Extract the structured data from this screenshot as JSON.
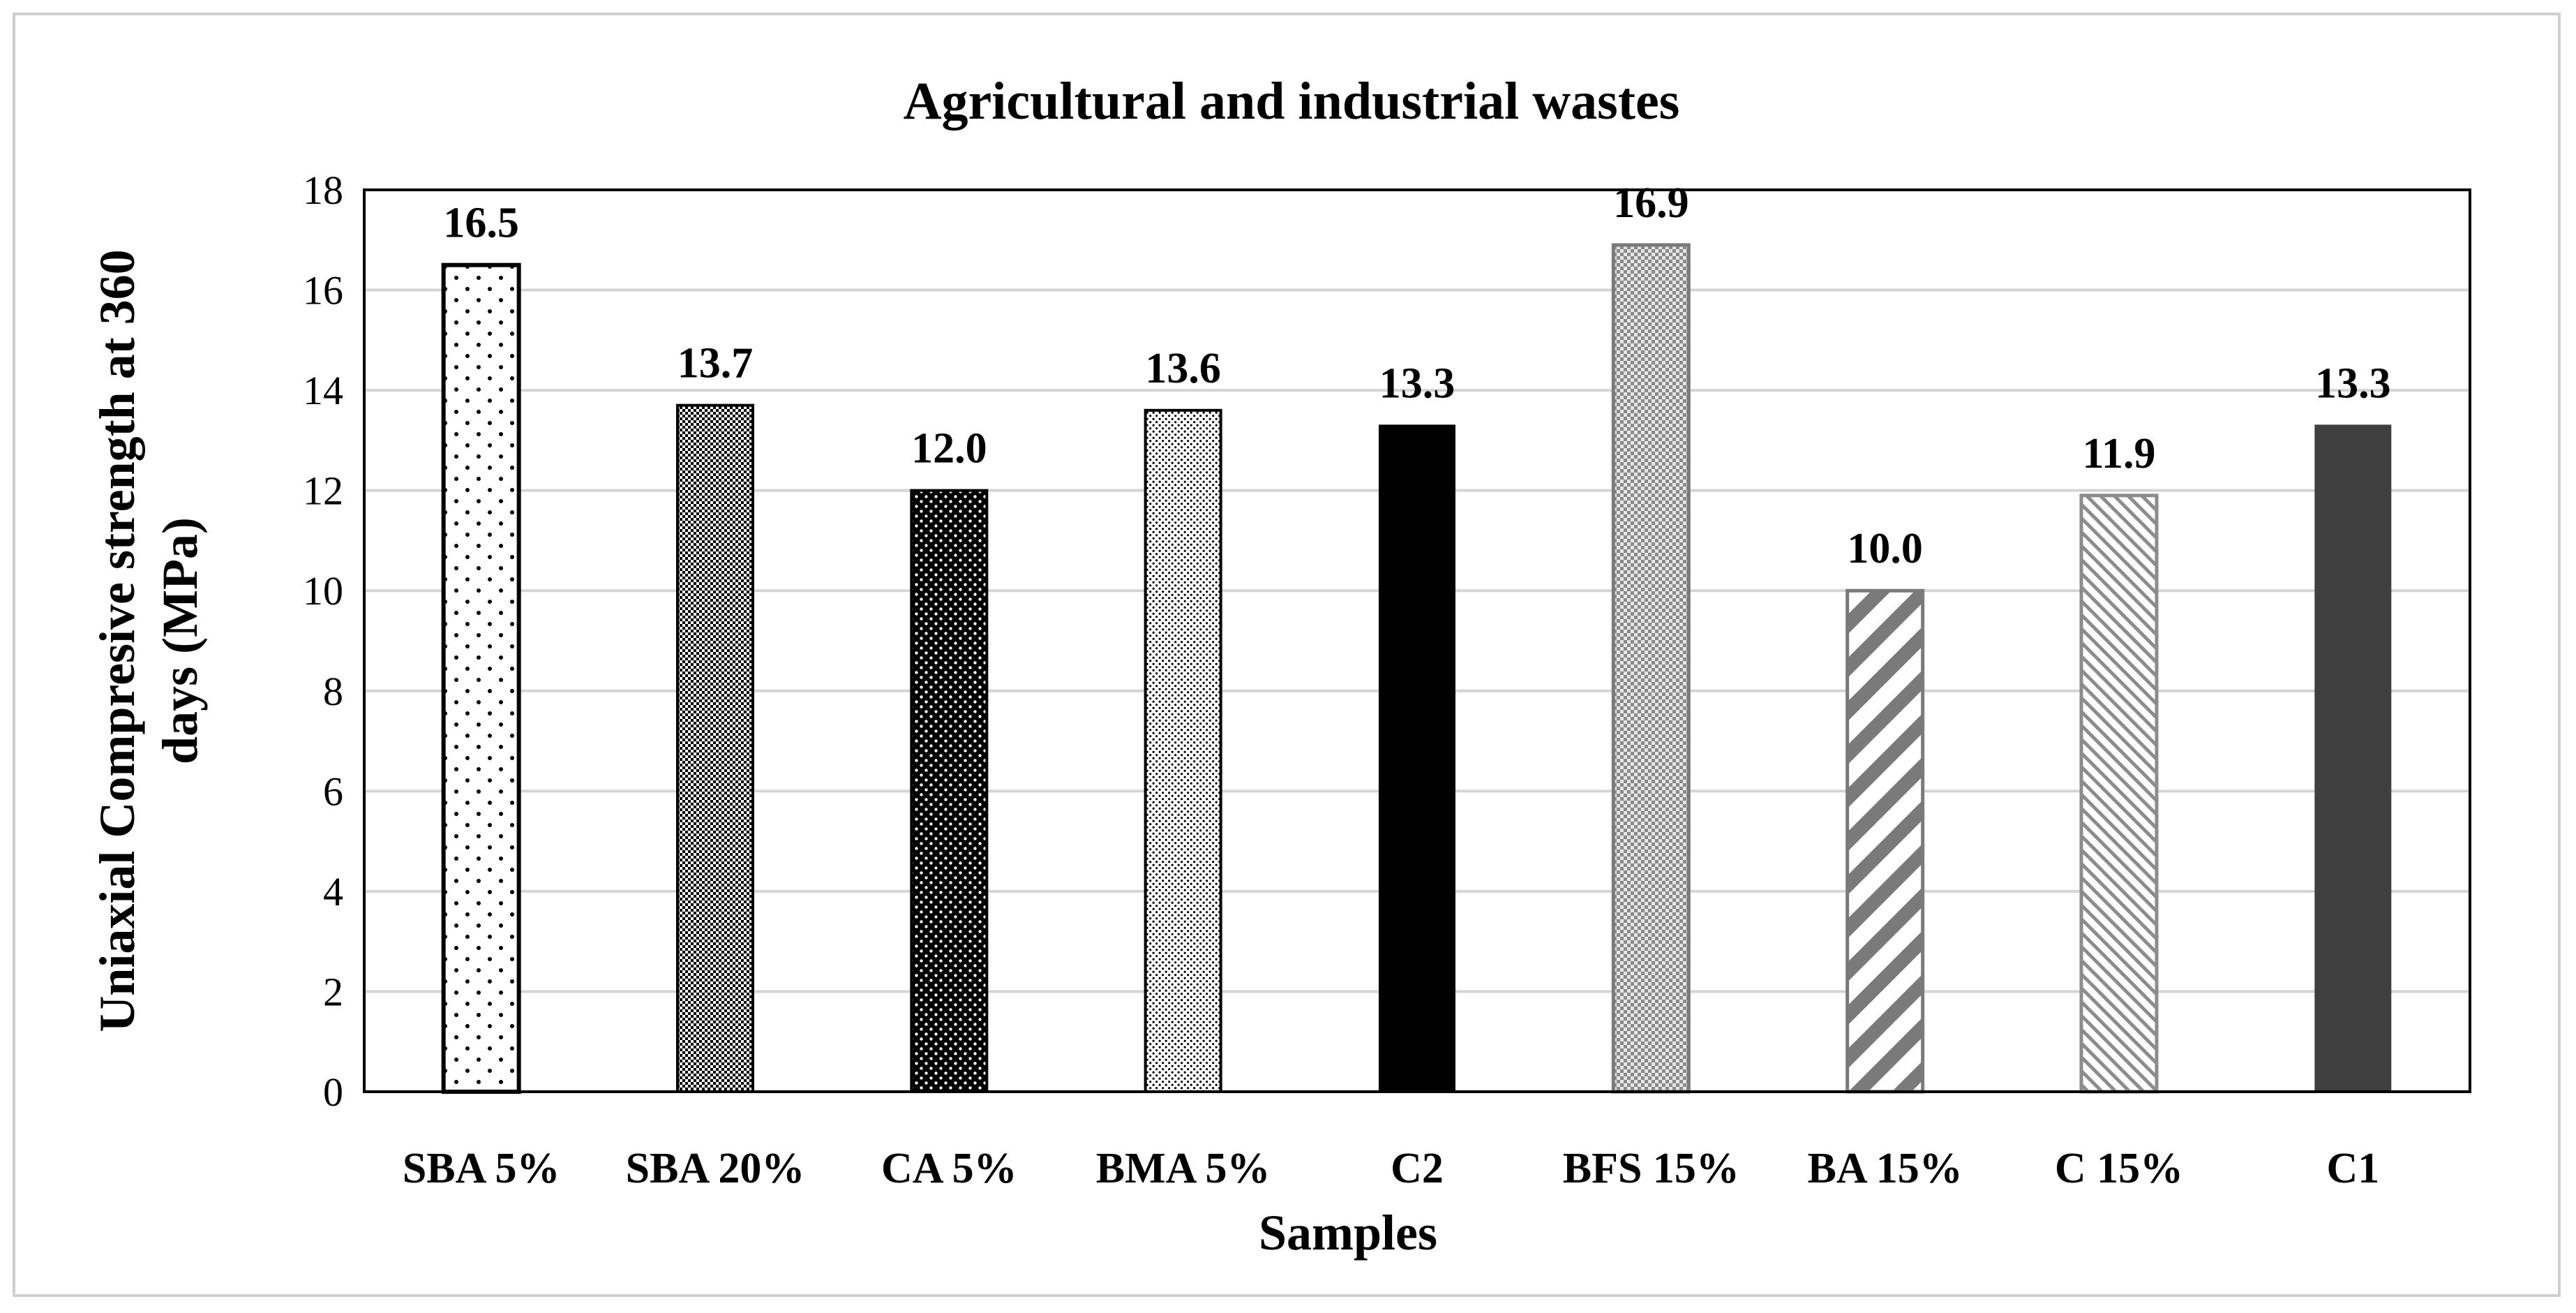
{
  "chart_data": {
    "type": "bar",
    "title": "Agricultural and industrial wastes",
    "xlabel": "Samples",
    "ylabel_lines": [
      "Uniaxial Compresive strength at 360",
      "days (MPa)"
    ],
    "ylim": [
      0,
      18
    ],
    "yticks": [
      0,
      2,
      4,
      6,
      8,
      10,
      12,
      14,
      16,
      18
    ],
    "grid": true,
    "categories": [
      "SBA 5%",
      "SBA 20%",
      "CA 5%",
      "BMA 5%",
      "C2",
      "BFS 15%",
      "BA 15%",
      "C 15%",
      "C1"
    ],
    "values": [
      16.5,
      13.7,
      12.0,
      13.6,
      13.3,
      16.9,
      10.0,
      11.9,
      13.3
    ],
    "value_labels": [
      "16.5",
      "13.7",
      "12.0",
      "13.6",
      "13.3",
      "16.9",
      "10.0",
      "11.9",
      "13.3"
    ],
    "bar_styles": [
      "dots-sparse",
      "checker-dense",
      "dots-black",
      "dots-fine",
      "solid-black",
      "checker-gray",
      "diagonal-wide",
      "diagonal-fine",
      "solid-dark"
    ]
  }
}
